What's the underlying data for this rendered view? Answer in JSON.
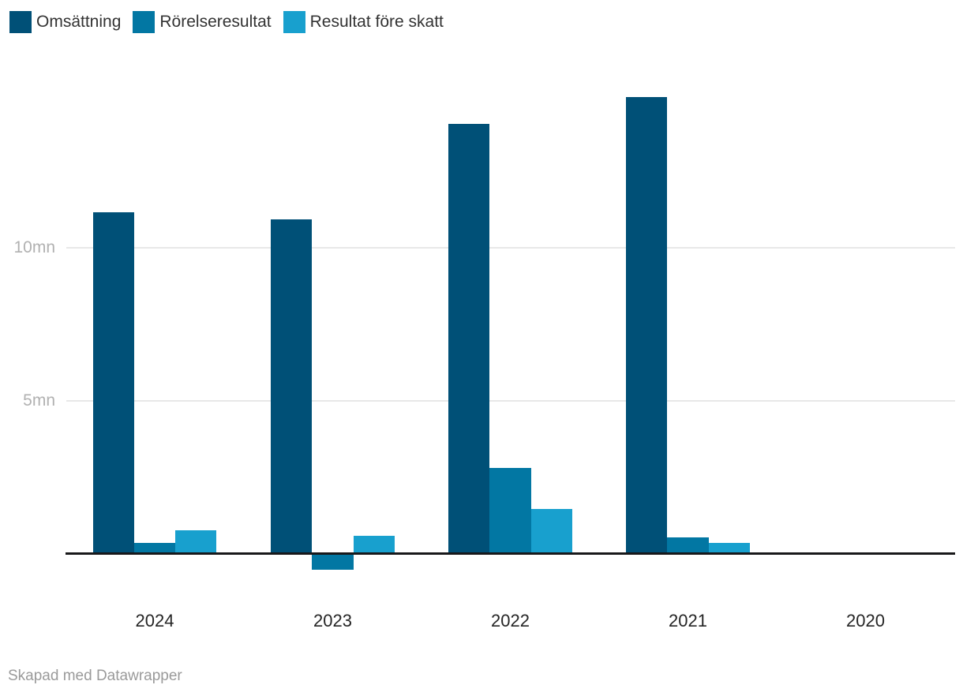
{
  "chart_data": {
    "type": "bar",
    "title": "",
    "xlabel": "",
    "ylabel": "",
    "unit": "mn",
    "categories": [
      "2024",
      "2023",
      "2022",
      "2021",
      "2020"
    ],
    "series": [
      {
        "name": "Omsättning",
        "color": "#005077",
        "values": [
          11.15,
          10.93,
          14.05,
          14.93,
          0
        ]
      },
      {
        "name": "Rörelseresultat",
        "color": "#0277a3",
        "values": [
          0.35,
          -0.55,
          2.82,
          0.53,
          0
        ]
      },
      {
        "name": "Resultat före skatt",
        "color": "#18a0ce",
        "values": [
          0.78,
          0.6,
          1.48,
          0.36,
          0
        ]
      }
    ],
    "y_ticks": [
      {
        "value": 10,
        "label": "10mn"
      },
      {
        "value": 5,
        "label": "5mn"
      }
    ],
    "ylim": [
      -0.7,
      15.5
    ],
    "grid": "horizontal",
    "legend_position": "top-left",
    "axis_color": "#18181a",
    "gridline_color": "#e8e8e8",
    "tick_label_color": "#b1b1b1",
    "category_label_color": "#252525"
  },
  "footer": {
    "credit": "Skapad med Datawrapper",
    "credit_color": "#9a9a9a"
  }
}
